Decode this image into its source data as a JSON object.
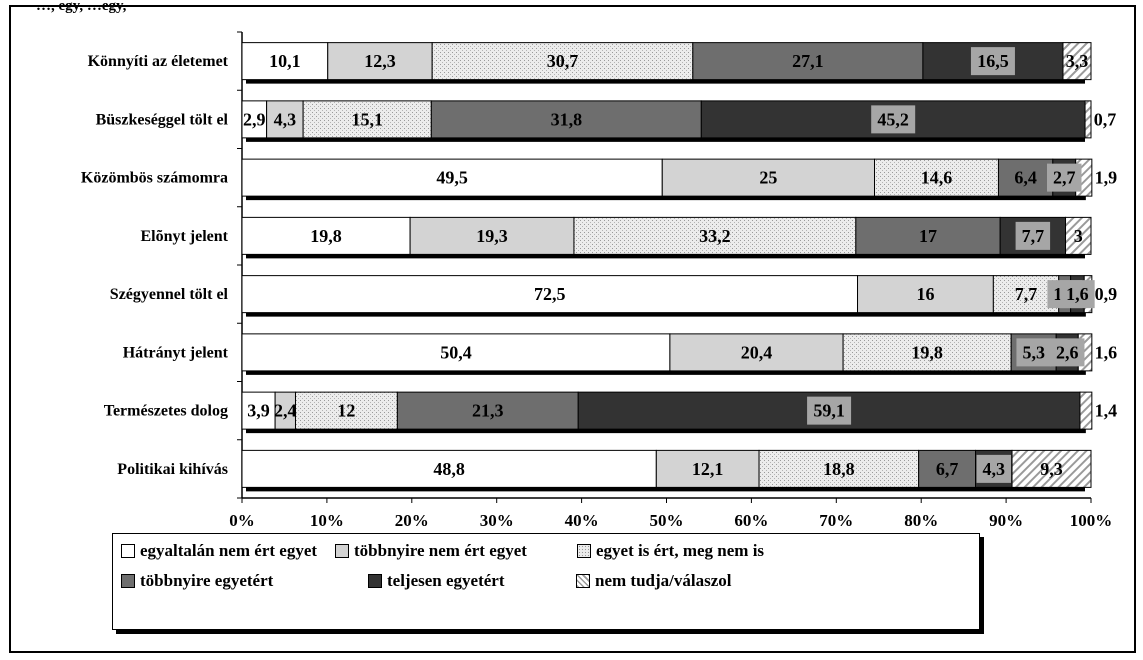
{
  "chart_data": {
    "type": "bar",
    "orientation": "horizontal",
    "stacked": true,
    "percent": true,
    "header_fragment": "…, egy, …egy,",
    "categories": [
      "Könnyíti az életemet",
      "Büszkeséggel tölt el",
      "Közömbös számomra",
      "Elõnyt jelent",
      "Szégyennel tölt el",
      "Hátrányt jelent",
      "Természetes dolog",
      "Politikai kihívás"
    ],
    "series": [
      {
        "name": "egyaltalán nem ért egyet",
        "color": "#ffffff",
        "pattern": "none",
        "values": [
          10.1,
          2.9,
          49.5,
          19.8,
          72.5,
          50.4,
          3.9,
          48.8
        ],
        "labels": [
          "10,1",
          "2,9",
          "49,5",
          "19,8",
          "72,5",
          "50,4",
          "3,9",
          "48,8"
        ]
      },
      {
        "name": "többnyire nem ért egyet",
        "color": "#d3d3d3",
        "pattern": "none",
        "values": [
          12.3,
          4.3,
          25,
          19.3,
          16,
          20.4,
          2.4,
          12.1
        ],
        "labels": [
          "12,3",
          "4,3",
          "25",
          "19,3",
          "16",
          "20,4",
          "2,4",
          "12,1"
        ]
      },
      {
        "name": "egyet is ért, meg nem is",
        "color": "#e8e8e8",
        "pattern": "dots",
        "values": [
          30.7,
          15.1,
          14.6,
          33.2,
          7.7,
          19.8,
          12,
          18.8
        ],
        "labels": [
          "30,7",
          "15,1",
          "14,6",
          "33,2",
          "7,7",
          "19,8",
          "12",
          "18,8"
        ]
      },
      {
        "name": "többnyire egyetért",
        "color": "#6e6e6e",
        "pattern": "none",
        "values": [
          27.1,
          31.8,
          6.4,
          17,
          1.4,
          5.3,
          21.3,
          6.7
        ],
        "labels": [
          "27,1",
          "31,8",
          "6,4",
          "17",
          "1,4",
          "5,3",
          "21,3",
          "6,7"
        ]
      },
      {
        "name": "teljesen egyetért",
        "color": "#333333",
        "pattern": "none",
        "values": [
          16.5,
          45.2,
          2.7,
          7.7,
          1.6,
          2.6,
          59.1,
          4.3
        ],
        "labels": [
          "16,5",
          "45,2",
          "2,7",
          "7,7",
          "1,6",
          "2,6",
          "59,1",
          "4,3"
        ]
      },
      {
        "name": "nem tudja/válaszol",
        "color": "#f4f4f4",
        "pattern": "hatch",
        "values": [
          3.3,
          0.7,
          1.9,
          3,
          0.9,
          1.6,
          1.4,
          9.3
        ],
        "labels": [
          "3,3",
          "0,7",
          "1,9",
          "3",
          "0,9",
          "1,6",
          "1,4",
          "9,3"
        ]
      }
    ],
    "xlim": [
      0,
      100
    ],
    "xticks": [
      0,
      10,
      20,
      30,
      40,
      50,
      60,
      70,
      80,
      90,
      100
    ],
    "xtick_labels": [
      "0%",
      "10%",
      "20%",
      "30%",
      "40%",
      "50%",
      "60%",
      "70%",
      "80%",
      "90%",
      "100%"
    ],
    "legend_position": "bottom",
    "grid": false
  }
}
